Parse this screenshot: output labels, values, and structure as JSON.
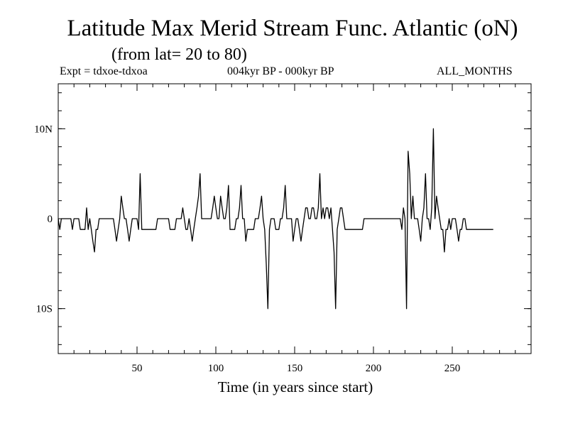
{
  "header": {
    "title": "Latitude Max Merid Stream Func. Atlantic (oN)",
    "subtitle": "(from lat= 20 to 80)",
    "expt": "Expt = tdxoe-tdxoa",
    "period": "004kyr BP - 000kyr BP",
    "months": "ALL_MONTHS"
  },
  "chart_data": {
    "type": "line",
    "title": "Latitude Max Merid Stream Func. Atlantic (oN)",
    "subtitle": "(from lat= 20 to 80)",
    "xlabel": "Time (in years since start)",
    "ylabel": "",
    "xlim": [
      0,
      300
    ],
    "ylim": [
      -15,
      15
    ],
    "grid": false,
    "x_ticks": [
      {
        "value": 50,
        "label": "50"
      },
      {
        "value": 100,
        "label": "100"
      },
      {
        "value": 150,
        "label": "150"
      },
      {
        "value": 200,
        "label": "200"
      },
      {
        "value": 250,
        "label": "250"
      }
    ],
    "y_ticks": [
      {
        "value": 10,
        "label": "10N"
      },
      {
        "value": 0,
        "label": "0"
      },
      {
        "value": -10,
        "label": "10S"
      }
    ],
    "series": [
      {
        "color": "#000000",
        "points": [
          [
            0,
            0
          ],
          [
            1,
            -1.2
          ],
          [
            2,
            0
          ],
          [
            4,
            0
          ],
          [
            6,
            0
          ],
          [
            7,
            0
          ],
          [
            8,
            0
          ],
          [
            9,
            -1.2
          ],
          [
            10,
            0
          ],
          [
            11,
            0
          ],
          [
            12,
            0
          ],
          [
            13,
            0
          ],
          [
            14,
            -1.2
          ],
          [
            15,
            -1.2
          ],
          [
            16,
            -1.2
          ],
          [
            17,
            -1.2
          ],
          [
            18,
            1.2
          ],
          [
            19,
            -1.2
          ],
          [
            20,
            0
          ],
          [
            21,
            -1.2
          ],
          [
            22,
            -2.5
          ],
          [
            23,
            -3.7
          ],
          [
            24,
            -1.2
          ],
          [
            25,
            -1.2
          ],
          [
            26,
            0
          ],
          [
            27,
            0
          ],
          [
            28,
            0
          ],
          [
            29,
            0
          ],
          [
            30,
            0
          ],
          [
            31,
            0
          ],
          [
            32,
            0
          ],
          [
            33,
            0
          ],
          [
            34,
            0
          ],
          [
            35,
            0
          ],
          [
            36,
            -1.2
          ],
          [
            37,
            -2.5
          ],
          [
            38,
            -1.2
          ],
          [
            39,
            0
          ],
          [
            40,
            2.5
          ],
          [
            41,
            1.2
          ],
          [
            42,
            0
          ],
          [
            43,
            0
          ],
          [
            44,
            -1.2
          ],
          [
            45,
            -2.5
          ],
          [
            46,
            -1.2
          ],
          [
            47,
            0
          ],
          [
            48,
            0
          ],
          [
            49,
            0
          ],
          [
            50,
            0
          ],
          [
            51,
            -1.2
          ],
          [
            52,
            5
          ],
          [
            53,
            -1.2
          ],
          [
            54,
            -1.2
          ],
          [
            55,
            -1.2
          ],
          [
            56,
            -1.2
          ],
          [
            57,
            -1.2
          ],
          [
            58,
            -1.2
          ],
          [
            59,
            -1.2
          ],
          [
            60,
            -1.2
          ],
          [
            61,
            -1.2
          ],
          [
            62,
            -1.2
          ],
          [
            63,
            0
          ],
          [
            64,
            0
          ],
          [
            65,
            0
          ],
          [
            66,
            0
          ],
          [
            67,
            0
          ],
          [
            68,
            0
          ],
          [
            69,
            0
          ],
          [
            70,
            0
          ],
          [
            71,
            -1.2
          ],
          [
            72,
            -1.2
          ],
          [
            73,
            -1.2
          ],
          [
            74,
            -1.2
          ],
          [
            75,
            0
          ],
          [
            76,
            0
          ],
          [
            77,
            0
          ],
          [
            78,
            0
          ],
          [
            79,
            1.2
          ],
          [
            80,
            0
          ],
          [
            81,
            -1.2
          ],
          [
            82,
            -1.2
          ],
          [
            83,
            0
          ],
          [
            84,
            -1.2
          ],
          [
            85,
            -2.5
          ],
          [
            86,
            -1.2
          ],
          [
            87,
            0
          ],
          [
            88,
            1.2
          ],
          [
            89,
            2.5
          ],
          [
            90,
            5
          ],
          [
            91,
            0
          ],
          [
            92,
            0
          ],
          [
            93,
            0
          ],
          [
            94,
            0
          ],
          [
            95,
            0
          ],
          [
            96,
            0
          ],
          [
            97,
            0
          ],
          [
            98,
            1.2
          ],
          [
            99,
            2.5
          ],
          [
            100,
            1.2
          ],
          [
            101,
            0
          ],
          [
            102,
            0
          ],
          [
            103,
            2.5
          ],
          [
            104,
            1.2
          ],
          [
            105,
            0
          ],
          [
            106,
            0
          ],
          [
            107,
            1.2
          ],
          [
            108,
            3.7
          ],
          [
            109,
            -1.2
          ],
          [
            110,
            -1.2
          ],
          [
            111,
            -1.2
          ],
          [
            112,
            -1.2
          ],
          [
            113,
            0
          ],
          [
            114,
            0
          ],
          [
            115,
            1.2
          ],
          [
            116,
            3.7
          ],
          [
            117,
            0
          ],
          [
            118,
            0
          ],
          [
            119,
            -2.5
          ],
          [
            120,
            -1.2
          ],
          [
            121,
            -1.2
          ],
          [
            122,
            -1.2
          ],
          [
            123,
            -1.2
          ],
          [
            124,
            -1.2
          ],
          [
            125,
            0
          ],
          [
            126,
            0
          ],
          [
            127,
            0
          ],
          [
            128,
            1.2
          ],
          [
            129,
            2.5
          ],
          [
            130,
            0
          ],
          [
            131,
            -1.2
          ],
          [
            132,
            -5
          ],
          [
            133,
            -10
          ],
          [
            134,
            -1.2
          ],
          [
            135,
            0
          ],
          [
            136,
            0
          ],
          [
            137,
            0
          ],
          [
            138,
            -1.2
          ],
          [
            139,
            -1.2
          ],
          [
            140,
            -1.2
          ],
          [
            141,
            0
          ],
          [
            142,
            0
          ],
          [
            143,
            1.2
          ],
          [
            144,
            3.7
          ],
          [
            145,
            0
          ],
          [
            146,
            0
          ],
          [
            147,
            0
          ],
          [
            148,
            0
          ],
          [
            149,
            -2.5
          ],
          [
            150,
            -1.2
          ],
          [
            151,
            0
          ],
          [
            152,
            0
          ],
          [
            153,
            -1.2
          ],
          [
            154,
            -2.5
          ],
          [
            155,
            -1.2
          ],
          [
            156,
            0
          ],
          [
            157,
            1.2
          ],
          [
            158,
            1.2
          ],
          [
            159,
            0
          ],
          [
            160,
            0
          ],
          [
            161,
            1.2
          ],
          [
            162,
            1.2
          ],
          [
            163,
            0
          ],
          [
            164,
            0
          ],
          [
            165,
            1.2
          ],
          [
            166,
            5
          ],
          [
            167,
            0
          ],
          [
            168,
            1.2
          ],
          [
            169,
            0
          ],
          [
            170,
            1.2
          ],
          [
            171,
            1.2
          ],
          [
            172,
            0
          ],
          [
            173,
            1.2
          ],
          [
            174,
            -1.2
          ],
          [
            175,
            -3.7
          ],
          [
            176,
            -10
          ],
          [
            177,
            -1.2
          ],
          [
            178,
            0
          ],
          [
            179,
            1.2
          ],
          [
            180,
            1.2
          ],
          [
            181,
            0
          ],
          [
            182,
            -1.2
          ],
          [
            183,
            -1.2
          ],
          [
            184,
            -1.2
          ],
          [
            185,
            -1.2
          ],
          [
            186,
            -1.2
          ],
          [
            187,
            -1.2
          ],
          [
            188,
            -1.2
          ],
          [
            189,
            -1.2
          ],
          [
            190,
            -1.2
          ],
          [
            191,
            -1.2
          ],
          [
            192,
            -1.2
          ],
          [
            193,
            -1.2
          ],
          [
            194,
            0
          ],
          [
            195,
            0
          ],
          [
            196,
            0
          ],
          [
            197,
            0
          ],
          [
            198,
            0
          ],
          [
            199,
            0
          ],
          [
            200,
            0
          ],
          [
            201,
            0
          ],
          [
            202,
            0
          ],
          [
            203,
            0
          ],
          [
            204,
            0
          ],
          [
            205,
            0
          ],
          [
            206,
            0
          ],
          [
            207,
            0
          ],
          [
            208,
            0
          ],
          [
            209,
            0
          ],
          [
            210,
            0
          ],
          [
            211,
            0
          ],
          [
            212,
            0
          ],
          [
            213,
            0
          ],
          [
            214,
            0
          ],
          [
            215,
            0
          ],
          [
            216,
            0
          ],
          [
            217,
            0
          ],
          [
            218,
            -1.2
          ],
          [
            219,
            1.2
          ],
          [
            220,
            0
          ],
          [
            221,
            -10
          ],
          [
            222,
            7.5
          ],
          [
            223,
            5
          ],
          [
            224,
            0
          ],
          [
            225,
            2.5
          ],
          [
            226,
            0
          ],
          [
            227,
            0
          ],
          [
            228,
            0
          ],
          [
            229,
            -1.2
          ],
          [
            230,
            -2.5
          ],
          [
            231,
            0
          ],
          [
            232,
            1.2
          ],
          [
            233,
            5
          ],
          [
            234,
            0
          ],
          [
            235,
            0
          ],
          [
            236,
            -1.2
          ],
          [
            237,
            1.2
          ],
          [
            238,
            10
          ],
          [
            239,
            0
          ],
          [
            240,
            2.5
          ],
          [
            241,
            1.2
          ],
          [
            242,
            0
          ],
          [
            243,
            -1.2
          ],
          [
            244,
            -1.2
          ],
          [
            245,
            -3.7
          ],
          [
            246,
            -1.2
          ],
          [
            247,
            -1.2
          ],
          [
            248,
            0
          ],
          [
            249,
            -1.2
          ],
          [
            250,
            0
          ],
          [
            251,
            0
          ],
          [
            252,
            0
          ],
          [
            253,
            -1.2
          ],
          [
            254,
            -2.5
          ],
          [
            255,
            -1.2
          ],
          [
            256,
            -1.2
          ],
          [
            257,
            0
          ],
          [
            258,
            0
          ],
          [
            259,
            -1.2
          ],
          [
            260,
            -1.2
          ],
          [
            261,
            -1.2
          ],
          [
            262,
            -1.2
          ],
          [
            263,
            -1.2
          ],
          [
            264,
            -1.2
          ],
          [
            265,
            -1.2
          ],
          [
            266,
            -1.2
          ],
          [
            267,
            -1.2
          ],
          [
            268,
            -1.2
          ],
          [
            269,
            -1.2
          ],
          [
            270,
            -1.2
          ],
          [
            271,
            -1.2
          ],
          [
            272,
            -1.2
          ],
          [
            273,
            -1.2
          ],
          [
            274,
            -1.2
          ],
          [
            275,
            -1.2
          ],
          [
            276,
            -1.2
          ]
        ]
      }
    ]
  }
}
